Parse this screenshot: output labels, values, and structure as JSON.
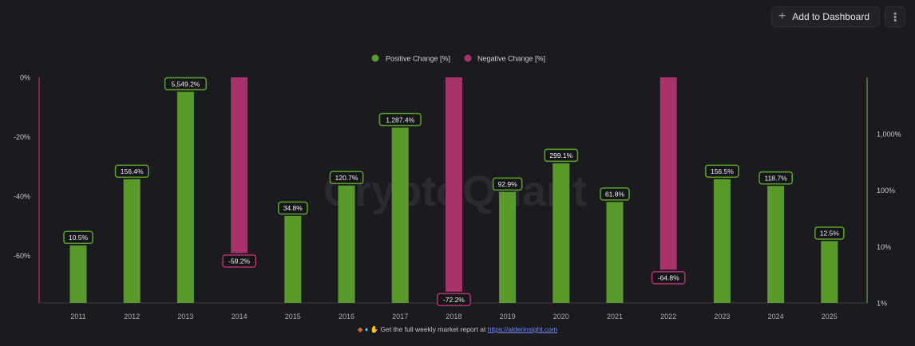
{
  "toolbar": {
    "add_label": "Add to Dashboard",
    "add_icon": "plus-icon",
    "more_icon": "more-vertical-icon"
  },
  "watermark": "CryptoQuant",
  "footer": {
    "icons": [
      "diamond-icon",
      "gem-icon",
      "raised-hands-icon"
    ],
    "text": "Get the full weekly market report at",
    "link": "https://alderinsight.com"
  },
  "colors": {
    "background": "#1b1b1f",
    "positive": "#5a9a2c",
    "negative": "#a8326a",
    "positive_axis": "#5a9a2c",
    "negative_axis": "#a8326a"
  },
  "chart_data": {
    "type": "bar",
    "categories": [
      "2011",
      "2012",
      "2013",
      "2014",
      "2015",
      "2016",
      "2017",
      "2018",
      "2019",
      "2020",
      "2021",
      "2022",
      "2023",
      "2024",
      "2025"
    ],
    "series": [
      {
        "name": "Positive Change [%]",
        "axis": "right",
        "scale": "log",
        "values": [
          10.5,
          156.4,
          5549.2,
          null,
          34.8,
          120.7,
          1287.4,
          null,
          92.9,
          299.1,
          61.8,
          null,
          156.5,
          118.7,
          12.5
        ],
        "labels": [
          "10.5%",
          "156.4%",
          "5,549.2%",
          "",
          "34.8%",
          "120.7%",
          "1,287.4%",
          "",
          "92.9%",
          "299.1%",
          "61.8%",
          "",
          "156.5%",
          "118.7%",
          "12.5%"
        ]
      },
      {
        "name": "Negative Change [%]",
        "axis": "left",
        "scale": "linear",
        "values": [
          null,
          null,
          null,
          -59.2,
          null,
          null,
          null,
          -72.2,
          null,
          null,
          null,
          -64.8,
          null,
          null,
          null
        ],
        "labels": [
          "",
          "",
          "",
          "-59.2%",
          "",
          "",
          "",
          "-72.2%",
          "",
          "",
          "",
          "-64.8%",
          "",
          "",
          ""
        ]
      }
    ],
    "left_axis": {
      "ticks": [
        0,
        -20,
        -40,
        -60
      ],
      "tick_labels": [
        "0%",
        "-20%",
        "-40%",
        "-60%"
      ],
      "range": [
        0,
        -76
      ]
    },
    "right_axis": {
      "scale": "log",
      "ticks": [
        1,
        10,
        100,
        1000
      ],
      "tick_labels": [
        "1%",
        "10%",
        "100%",
        "1,000%"
      ],
      "range": [
        1,
        10000
      ]
    },
    "legend": {
      "position": "top-center"
    },
    "grid": false
  }
}
